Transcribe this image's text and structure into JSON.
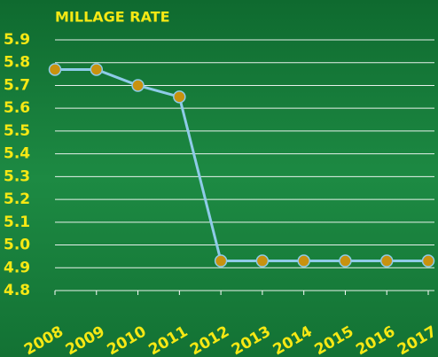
{
  "chart_data": {
    "type": "line",
    "title": "MILLAGE RATE",
    "categories": [
      "2008",
      "2009",
      "2010",
      "2011",
      "2012",
      "2013",
      "2014",
      "2015",
      "2016",
      "2017"
    ],
    "values": [
      5.77,
      5.77,
      5.7,
      5.65,
      4.93,
      4.93,
      4.93,
      4.93,
      4.93,
      4.93
    ],
    "color": "#8ecbe8",
    "marker_color": "#c8920f",
    "ylim": [
      4.8,
      5.9
    ],
    "yticks": [
      4.8,
      4.9,
      {
        "value": 5,
        "label": "5.0"
      },
      5.1,
      5.2,
      5.3,
      5.4,
      5.5,
      5.6,
      5.7,
      5.8,
      5.9
    ],
    "grid": true
  }
}
